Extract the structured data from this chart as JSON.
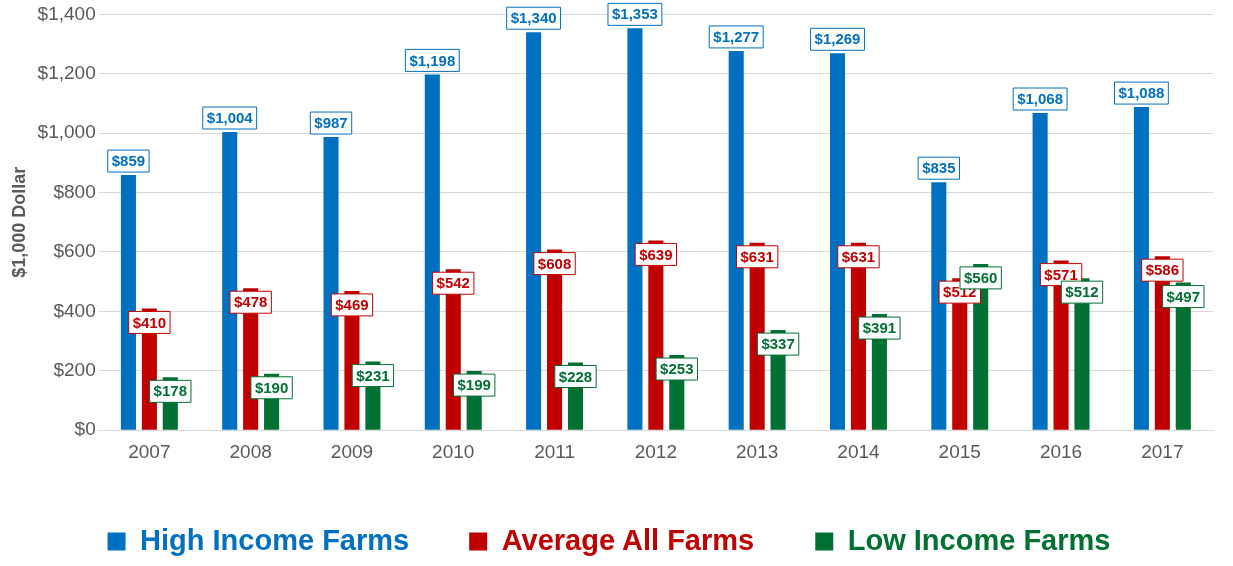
{
  "chart_data": {
    "type": "bar",
    "ylabel": "$1,000 Dollar",
    "categories": [
      "2007",
      "2008",
      "2009",
      "2010",
      "2011",
      "2012",
      "2013",
      "2014",
      "2015",
      "2016",
      "2017"
    ],
    "series": [
      {
        "name": "High Income Farms",
        "color": "#0070c0",
        "values": [
          859,
          1004,
          987,
          1198,
          1340,
          1353,
          1277,
          1269,
          835,
          1068,
          1088
        ],
        "value_labels": [
          "$859",
          "$1,004",
          "$987",
          "$1,198",
          "$1,340",
          "$1,353",
          "$1,277",
          "$1,269",
          "$835",
          "$1,068",
          "$1,088"
        ]
      },
      {
        "name": "Average All Farms",
        "color": "#c00000",
        "values": [
          410,
          478,
          469,
          542,
          608,
          639,
          631,
          631,
          512,
          571,
          586
        ],
        "value_labels": [
          "$410",
          "$478",
          "$469",
          "$542",
          "$608",
          "$639",
          "$631",
          "$631",
          "$512",
          "$571",
          "$586"
        ]
      },
      {
        "name": "Low Income Farms",
        "color": "#007033",
        "values": [
          178,
          190,
          231,
          199,
          228,
          253,
          337,
          391,
          560,
          512,
          497
        ],
        "value_labels": [
          "$178",
          "$190",
          "$231",
          "$199",
          "$228",
          "$253",
          "$337",
          "$391",
          "$560",
          "$512",
          "$497"
        ]
      }
    ],
    "ylim": [
      0,
      1400
    ],
    "yticks": [
      {
        "value": 0,
        "label": "$0"
      },
      {
        "value": 200,
        "label": "$200"
      },
      {
        "value": 400,
        "label": "$400"
      },
      {
        "value": 600,
        "label": "$600"
      },
      {
        "value": 800,
        "label": "$800"
      },
      {
        "value": 1000,
        "label": "$1,000"
      },
      {
        "value": 1200,
        "label": "$1,200"
      },
      {
        "value": 1400,
        "label": "$1,400"
      }
    ],
    "grid": "y",
    "legend": "bottom"
  }
}
